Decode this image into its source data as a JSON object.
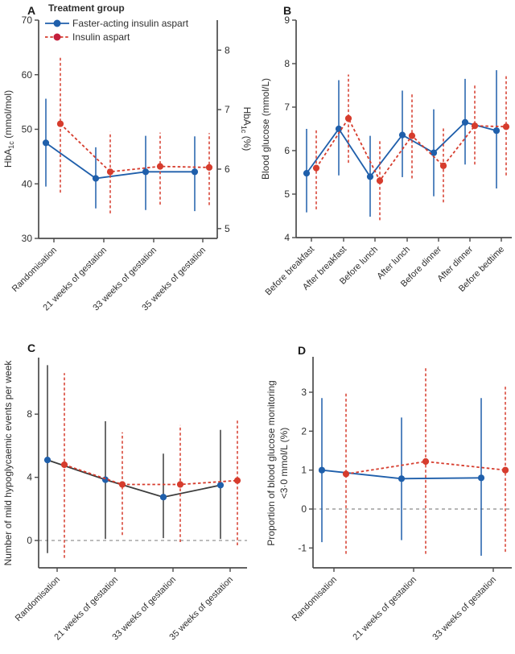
{
  "figure": {
    "legend": {
      "title": "Treatment group",
      "items": [
        {
          "label": "Faster-acting insulin aspart",
          "style": "blue"
        },
        {
          "label": "Insulin aspart",
          "style": "red"
        }
      ]
    },
    "colors": {
      "blue": "#1f5fab",
      "red": "#d63c2d",
      "red_legend": "#c41f3c",
      "dark": "#3c3c3c",
      "axis": "#4b4b4b",
      "text": "#2f2f2f",
      "zero": "#8a8a8a"
    }
  },
  "chart_data": [
    {
      "panel": "A",
      "type": "line",
      "ylabel": "HbA|1c| (mmol/mol)",
      "right_ylabel": "HbA|1c| (%)",
      "ylim": [
        30,
        70
      ],
      "yticks": [
        30,
        40,
        50,
        60,
        70
      ],
      "right_yticks": [
        {
          "label": "5",
          "value": 31.8
        },
        {
          "label": "6",
          "value": 42.7
        },
        {
          "label": "7",
          "value": 53.6
        },
        {
          "label": "8",
          "value": 64.5
        }
      ],
      "zero_line": false,
      "categories": [
        "Randomisation",
        "21 weeks of gestation",
        "33 weeks of gestation",
        "35 weeks of gestation"
      ],
      "series": [
        {
          "name": "Faster-acting insulin aspart",
          "style": "blue",
          "line": "solid",
          "values": [
            47.5,
            41.0,
            42.2,
            42.2
          ],
          "ci_lo": [
            39.5,
            35.5,
            35.2,
            35.0
          ],
          "ci_hi": [
            55.6,
            46.7,
            48.8,
            48.7
          ]
        },
        {
          "name": "Insulin aspart",
          "style": "red",
          "line": "dashed",
          "values": [
            51.0,
            42.2,
            43.2,
            43.0
          ],
          "ci_lo": [
            38.4,
            34.6,
            36.2,
            36.1
          ],
          "ci_hi": [
            63.3,
            49.5,
            49.4,
            49.3
          ]
        }
      ]
    },
    {
      "panel": "B",
      "type": "line",
      "ylabel": "Blood glucose (mmol/L)",
      "ylim": [
        4,
        9
      ],
      "yticks": [
        4,
        5,
        6,
        7,
        8,
        9
      ],
      "zero_line": false,
      "categories": [
        "Before breakfast",
        "After breakfast",
        "Before lunch",
        "After lunch",
        "Before dinner",
        "After dinner",
        "Before bedtime"
      ],
      "series": [
        {
          "name": "Faster-acting insulin aspart",
          "style": "blue",
          "line": "solid",
          "values": [
            5.48,
            6.5,
            5.4,
            6.36,
            5.95,
            6.65,
            6.46
          ],
          "ci_lo": [
            4.58,
            5.43,
            4.48,
            5.39,
            4.95,
            5.68,
            5.13
          ],
          "ci_hi": [
            6.5,
            7.62,
            6.34,
            7.38,
            6.95,
            7.65,
            7.85
          ]
        },
        {
          "name": "Insulin aspart",
          "style": "red",
          "line": "dashed",
          "values": [
            5.6,
            6.74,
            5.31,
            6.34,
            5.65,
            6.57,
            6.55
          ],
          "ci_lo": [
            4.65,
            5.72,
            4.4,
            5.36,
            4.81,
            5.68,
            5.43
          ],
          "ci_hi": [
            6.48,
            7.75,
            6.23,
            7.34,
            6.53,
            7.54,
            7.71
          ]
        }
      ]
    },
    {
      "panel": "C",
      "type": "line",
      "ylabel": "Number of mild hypoglycaemic events per week",
      "ylim": [
        -1.73,
        11.58
      ],
      "yticks": [
        0,
        4,
        8
      ],
      "zero_line": true,
      "categories": [
        "Randomisation",
        "21 weeks of gestation",
        "33 weeks of gestation",
        "35 weeks of gestation"
      ],
      "series": [
        {
          "name": "Faster-acting insulin aspart",
          "style": "blue",
          "line": "solid",
          "stroke_style": "dark",
          "values": [
            5.1,
            3.85,
            2.75,
            3.5
          ],
          "ci_lo": [
            -0.8,
            0.1,
            0.15,
            0.1
          ],
          "ci_hi": [
            11.1,
            7.55,
            5.5,
            7.0
          ]
        },
        {
          "name": "Insulin aspart",
          "style": "red",
          "line": "dashed",
          "values": [
            4.8,
            3.55,
            3.55,
            3.8
          ],
          "ci_lo": [
            -1.1,
            0.35,
            -0.1,
            -0.3
          ],
          "ci_hi": [
            10.6,
            6.85,
            7.3,
            7.7
          ]
        }
      ]
    },
    {
      "panel": "D",
      "type": "line",
      "ylabel_lines": [
        "Proportion of blood glucose monitoring",
        "<3·0 mmol/L (%)"
      ],
      "ylim": [
        -1.51,
        3.91
      ],
      "yticks": [
        -1,
        0,
        1,
        2,
        3
      ],
      "zero_line": true,
      "categories": [
        "Randomisation",
        "21 weeks of gestation",
        "33 weeks of gestation"
      ],
      "series": [
        {
          "name": "Faster-acting insulin aspart",
          "style": "blue",
          "line": "solid",
          "values": [
            1.0,
            0.78,
            0.8
          ],
          "ci_lo": [
            -0.85,
            -0.8,
            -1.2
          ],
          "ci_hi": [
            2.85,
            2.35,
            2.85
          ]
        },
        {
          "name": "Insulin aspart",
          "style": "red",
          "line": "dashed",
          "values": [
            0.9,
            1.22,
            1.0
          ],
          "ci_lo": [
            -1.15,
            -1.15,
            -1.1
          ],
          "ci_hi": [
            3.0,
            3.65,
            3.2
          ]
        }
      ]
    }
  ]
}
